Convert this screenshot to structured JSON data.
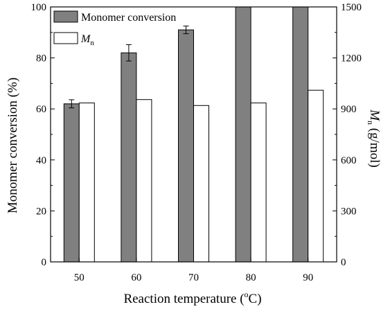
{
  "chart_data": {
    "type": "bar",
    "categories": [
      "50",
      "60",
      "70",
      "80",
      "90"
    ],
    "xlabel": {
      "main": "Reaction temperature (",
      "sup": "o",
      "end": "C)"
    },
    "ylabel_left": "Monomer conversion (%)",
    "ylabel_right": {
      "italic": "M",
      "sub": "n",
      "rest": " (g/mol)"
    },
    "ylim_left": [
      0,
      100
    ],
    "yticks_left": [
      0,
      20,
      40,
      60,
      80,
      100
    ],
    "ylim_right": [
      0,
      1500
    ],
    "yticks_right": [
      0,
      300,
      600,
      900,
      1200,
      1500
    ],
    "legend_position": "top-left",
    "series": [
      {
        "name": "Monomer conversion",
        "axis": "left",
        "color": "#808080",
        "values": [
          62,
          82,
          91,
          100,
          100
        ],
        "errors": [
          1.6,
          3.2,
          1.5,
          0,
          0
        ]
      },
      {
        "name": {
          "italic": "M",
          "sub": "n"
        },
        "axis": "right",
        "color": "#ffffff",
        "values": [
          935,
          955,
          920,
          935,
          1010
        ]
      }
    ]
  }
}
